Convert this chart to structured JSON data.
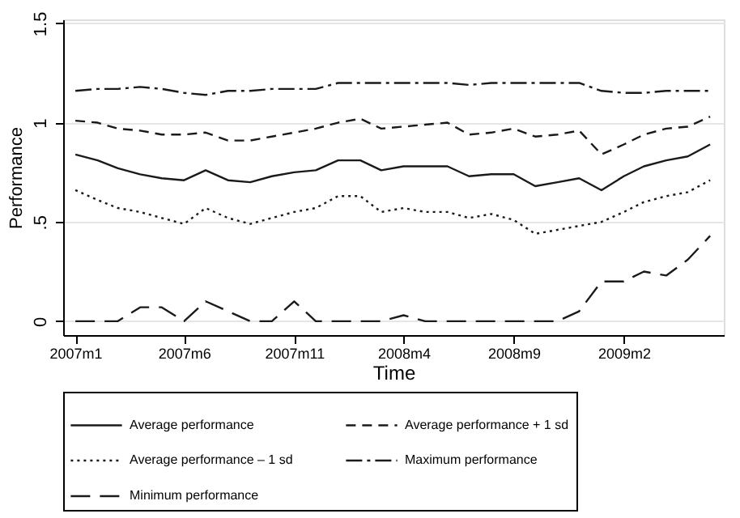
{
  "chart_data": {
    "type": "line",
    "xlabel": "Time",
    "ylabel": "Performance",
    "x": [
      "2007-01",
      "2007-02",
      "2007-03",
      "2007-04",
      "2007-05",
      "2007-06",
      "2007-07",
      "2007-08",
      "2007-09",
      "2007-10",
      "2007-11",
      "2007-12",
      "2008-01",
      "2008-02",
      "2008-03",
      "2008-04",
      "2008-05",
      "2008-06",
      "2008-07",
      "2008-08",
      "2008-09",
      "2008-10",
      "2008-11",
      "2008-12",
      "2009-01",
      "2009-02",
      "2009-03",
      "2009-04",
      "2009-05",
      "2009-06"
    ],
    "xlim": [
      "2006-12-15",
      "2009-06-20"
    ],
    "xticks": [
      {
        "value": "2007-01",
        "label": "2007m1"
      },
      {
        "value": "2007-06",
        "label": "2007m6"
      },
      {
        "value": "2007-11",
        "label": "2007m11"
      },
      {
        "value": "2008-04",
        "label": "2008m4"
      },
      {
        "value": "2008-09",
        "label": "2008m9"
      },
      {
        "value": "2009-02",
        "label": "2009m2"
      }
    ],
    "ylim": [
      -0.07,
      1.52
    ],
    "yticks": [
      0,
      {
        "value": 0.5,
        "label": ".5"
      },
      1,
      1.5
    ],
    "grid": "y",
    "legend": "bottom",
    "series": [
      {
        "name": "Average performance",
        "color": "#1a1a1a",
        "line_style": "solid",
        "values": [
          0.84,
          0.81,
          0.77,
          0.74,
          0.72,
          0.71,
          0.76,
          0.71,
          0.7,
          0.73,
          0.75,
          0.76,
          0.81,
          0.81,
          0.76,
          0.78,
          0.78,
          0.78,
          0.73,
          0.74,
          0.74,
          0.68,
          0.7,
          0.72,
          0.66,
          0.73,
          0.78,
          0.81,
          0.83,
          0.89
        ]
      },
      {
        "name": "Average performance + 1 sd",
        "color": "#1a1a1a",
        "line_style": "dashed",
        "values": [
          1.01,
          1.0,
          0.97,
          0.96,
          0.94,
          0.94,
          0.95,
          0.91,
          0.91,
          0.93,
          0.95,
          0.97,
          1.0,
          1.02,
          0.97,
          0.98,
          0.99,
          1.0,
          0.94,
          0.95,
          0.97,
          0.93,
          0.94,
          0.96,
          0.84,
          0.89,
          0.94,
          0.97,
          0.98,
          1.03
        ]
      },
      {
        "name": "Average performance – 1 sd",
        "color": "#1a1a1a",
        "line_style": "dotted",
        "values": [
          0.66,
          0.61,
          0.57,
          0.55,
          0.52,
          0.49,
          0.57,
          0.52,
          0.49,
          0.52,
          0.55,
          0.57,
          0.63,
          0.63,
          0.55,
          0.57,
          0.55,
          0.55,
          0.52,
          0.54,
          0.51,
          0.44,
          0.46,
          0.48,
          0.5,
          0.55,
          0.6,
          0.63,
          0.65,
          0.71
        ]
      },
      {
        "name": "Maximum performance",
        "color": "#1a1a1a",
        "line_style": "dashdot",
        "values": [
          1.16,
          1.17,
          1.17,
          1.18,
          1.17,
          1.15,
          1.14,
          1.16,
          1.16,
          1.17,
          1.17,
          1.17,
          1.2,
          1.2,
          1.2,
          1.2,
          1.2,
          1.2,
          1.19,
          1.2,
          1.2,
          1.2,
          1.2,
          1.2,
          1.16,
          1.15,
          1.15,
          1.16,
          1.16,
          1.16
        ]
      },
      {
        "name": "Minimum performance",
        "color": "#1a1a1a",
        "line_style": "longdash",
        "values": [
          0,
          0,
          0,
          0.07,
          0.07,
          0,
          0.1,
          0.05,
          0,
          0,
          0.1,
          0,
          0,
          0,
          0,
          0.03,
          0,
          0,
          0,
          0,
          0,
          0,
          0,
          0.05,
          0.2,
          0.2,
          0.25,
          0.23,
          0.31,
          0.43
        ]
      }
    ]
  }
}
